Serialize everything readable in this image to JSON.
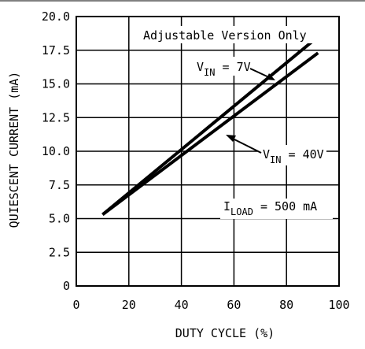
{
  "chart_data": {
    "type": "line",
    "xlabel": "DUTY CYCLE (%)",
    "ylabel": "QUIESCENT CURRENT (mA)",
    "xlim": [
      0,
      100
    ],
    "ylim": [
      0,
      20
    ],
    "x_ticks": [
      "0",
      "20",
      "40",
      "60",
      "80",
      "100"
    ],
    "y_ticks": [
      "0",
      "2.5",
      "5.0",
      "7.5",
      "10.0",
      "12.5",
      "15.0",
      "17.5",
      "20.0"
    ],
    "grid": true,
    "series": [
      {
        "name": "V_IN = 7V",
        "x": [
          10,
          92
        ],
        "y": [
          5.3,
          18.5
        ]
      },
      {
        "name": "V_IN = 40V",
        "x": [
          10,
          92
        ],
        "y": [
          5.3,
          17.3
        ]
      }
    ],
    "annotations": {
      "top_note": "Adjustable Version Only",
      "vin7": {
        "prefix": "V",
        "sub": "IN",
        "suffix": " = 7V"
      },
      "vin40": {
        "prefix": "V",
        "sub": "IN",
        "suffix": " = 40V"
      },
      "iload": {
        "prefix": "I",
        "sub": "LOAD",
        "suffix": " = 500 mA"
      }
    }
  }
}
